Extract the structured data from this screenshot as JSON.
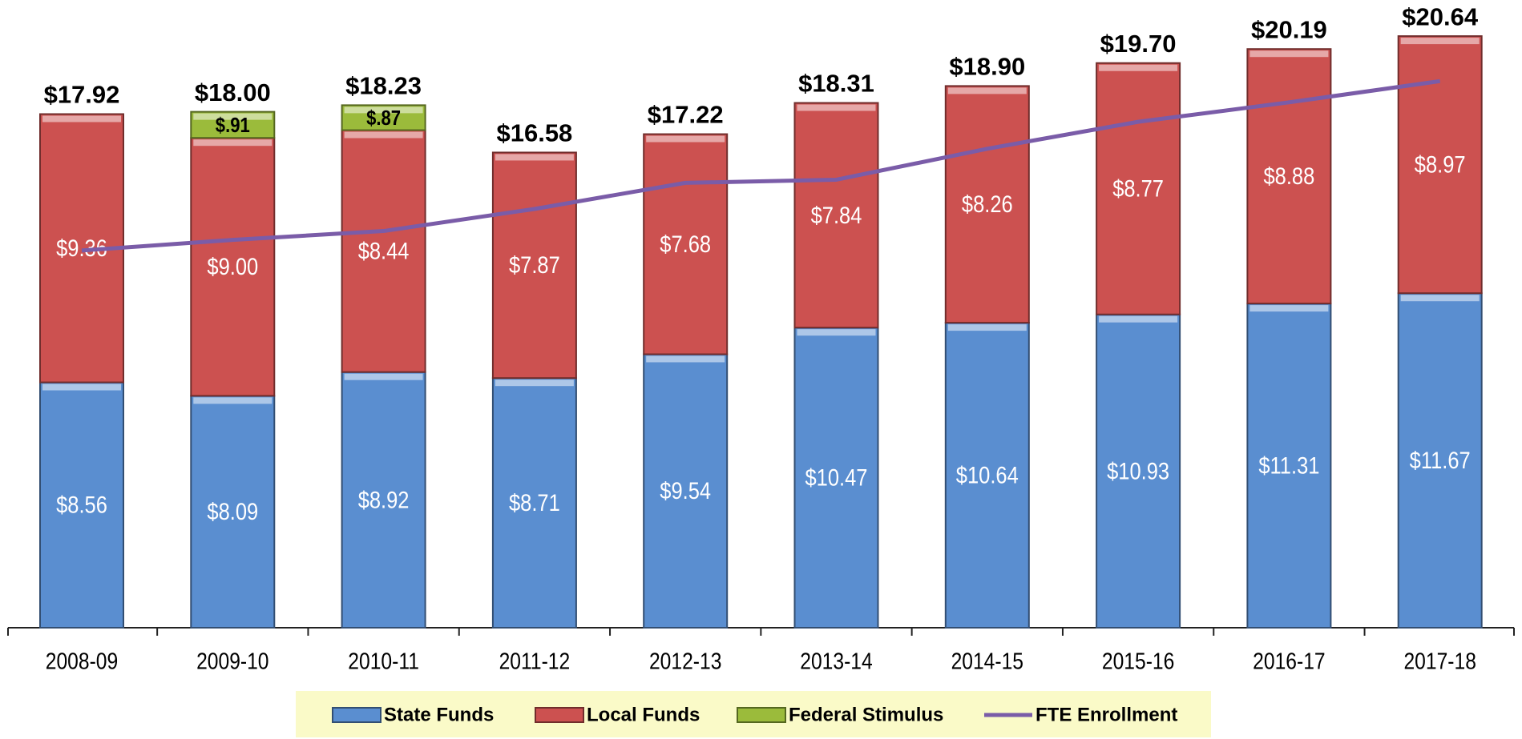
{
  "chart_data": {
    "type": "bar",
    "stacked": true,
    "categories": [
      "2008-09",
      "2009-10",
      "2010-11",
      "2011-12",
      "2012-13",
      "2013-14",
      "2014-15",
      "2015-16",
      "2016-17",
      "2017-18"
    ],
    "ylim": [
      0,
      21.9
    ],
    "series": [
      {
        "name": "State Funds",
        "color": "#5a8ed0",
        "values": [
          8.56,
          8.09,
          8.92,
          8.71,
          9.54,
          10.47,
          10.64,
          10.93,
          11.31,
          11.67
        ],
        "value_labels": [
          "$8.56",
          "$8.09",
          "$8.92",
          "$8.71",
          "$9.54",
          "$10.47",
          "$10.64",
          "$10.93",
          "$11.31",
          "$11.67"
        ]
      },
      {
        "name": "Local Funds",
        "color": "#cc5150",
        "values": [
          9.36,
          9.0,
          8.44,
          7.87,
          7.68,
          7.84,
          8.26,
          8.77,
          8.88,
          8.97
        ],
        "value_labels": [
          "$9.36",
          "$9.00",
          "$8.44",
          "$7.87",
          "$7.68",
          "$7.84",
          "$8.26",
          "$8.77",
          "$8.88",
          "$8.97"
        ]
      },
      {
        "name": "Federal Stimulus",
        "color": "#9bbb3b",
        "values": [
          null,
          0.91,
          0.87,
          null,
          null,
          null,
          null,
          null,
          null,
          null
        ],
        "value_labels": [
          null,
          "$.91",
          "$.87",
          null,
          null,
          null,
          null,
          null,
          null,
          null
        ]
      },
      {
        "name": "FTE Enrollment",
        "type": "line",
        "color": "#7a5ca8",
        "values": [
          13.16,
          13.53,
          13.84,
          14.61,
          15.52,
          15.63,
          16.71,
          17.65,
          18.33,
          19.07
        ]
      }
    ],
    "totals": {
      "values": [
        17.92,
        18.0,
        18.23,
        16.58,
        17.22,
        18.31,
        18.9,
        19.7,
        20.19,
        20.64
      ],
      "value_labels": [
        "$17.92",
        "$18.00",
        "$18.23",
        "$16.58",
        "$17.22",
        "$18.31",
        "$18.90",
        "$19.70",
        "$20.19",
        "$20.64"
      ]
    }
  }
}
